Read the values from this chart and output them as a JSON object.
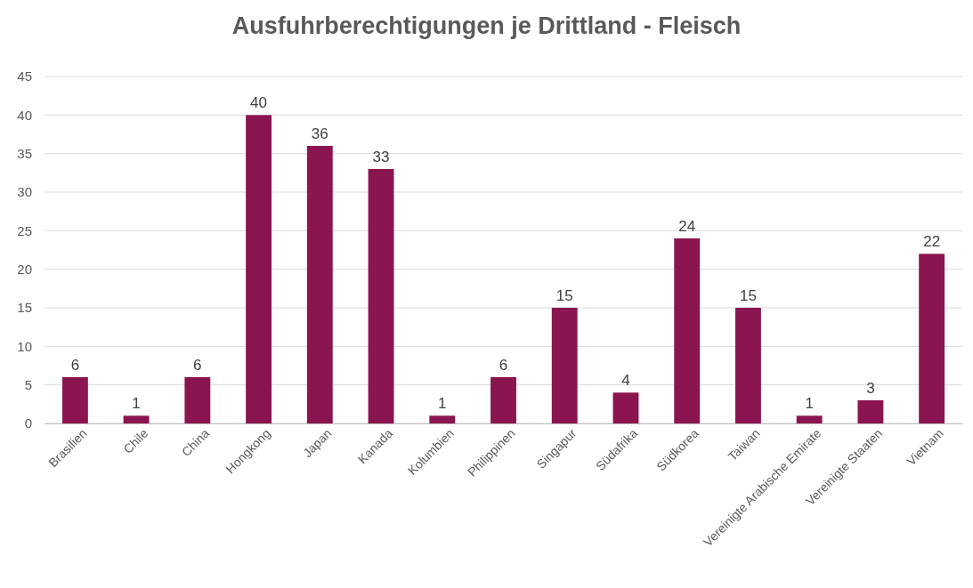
{
  "chart_data": {
    "type": "bar",
    "title": "Ausfuhrberechtigungen je Drittland - Fleisch",
    "categories": [
      "Brasilien",
      "Chile",
      "China",
      "Hongkong",
      "Japan",
      "Kanada",
      "Kolumbien",
      "Philippinen",
      "Singapur",
      "Südafrika",
      "Südkorea",
      "Taiwan",
      "Vereinigte Arabische Emirate",
      "Vereinigte Staaten",
      "Vietnam"
    ],
    "values": [
      6,
      1,
      6,
      40,
      36,
      33,
      1,
      6,
      15,
      4,
      24,
      15,
      1,
      3,
      22
    ],
    "color": "#8b1550",
    "ylim": [
      0,
      45
    ],
    "yticks": [
      0,
      5,
      10,
      15,
      20,
      25,
      30,
      35,
      40,
      45
    ],
    "grid": "y",
    "data_labels": true
  }
}
